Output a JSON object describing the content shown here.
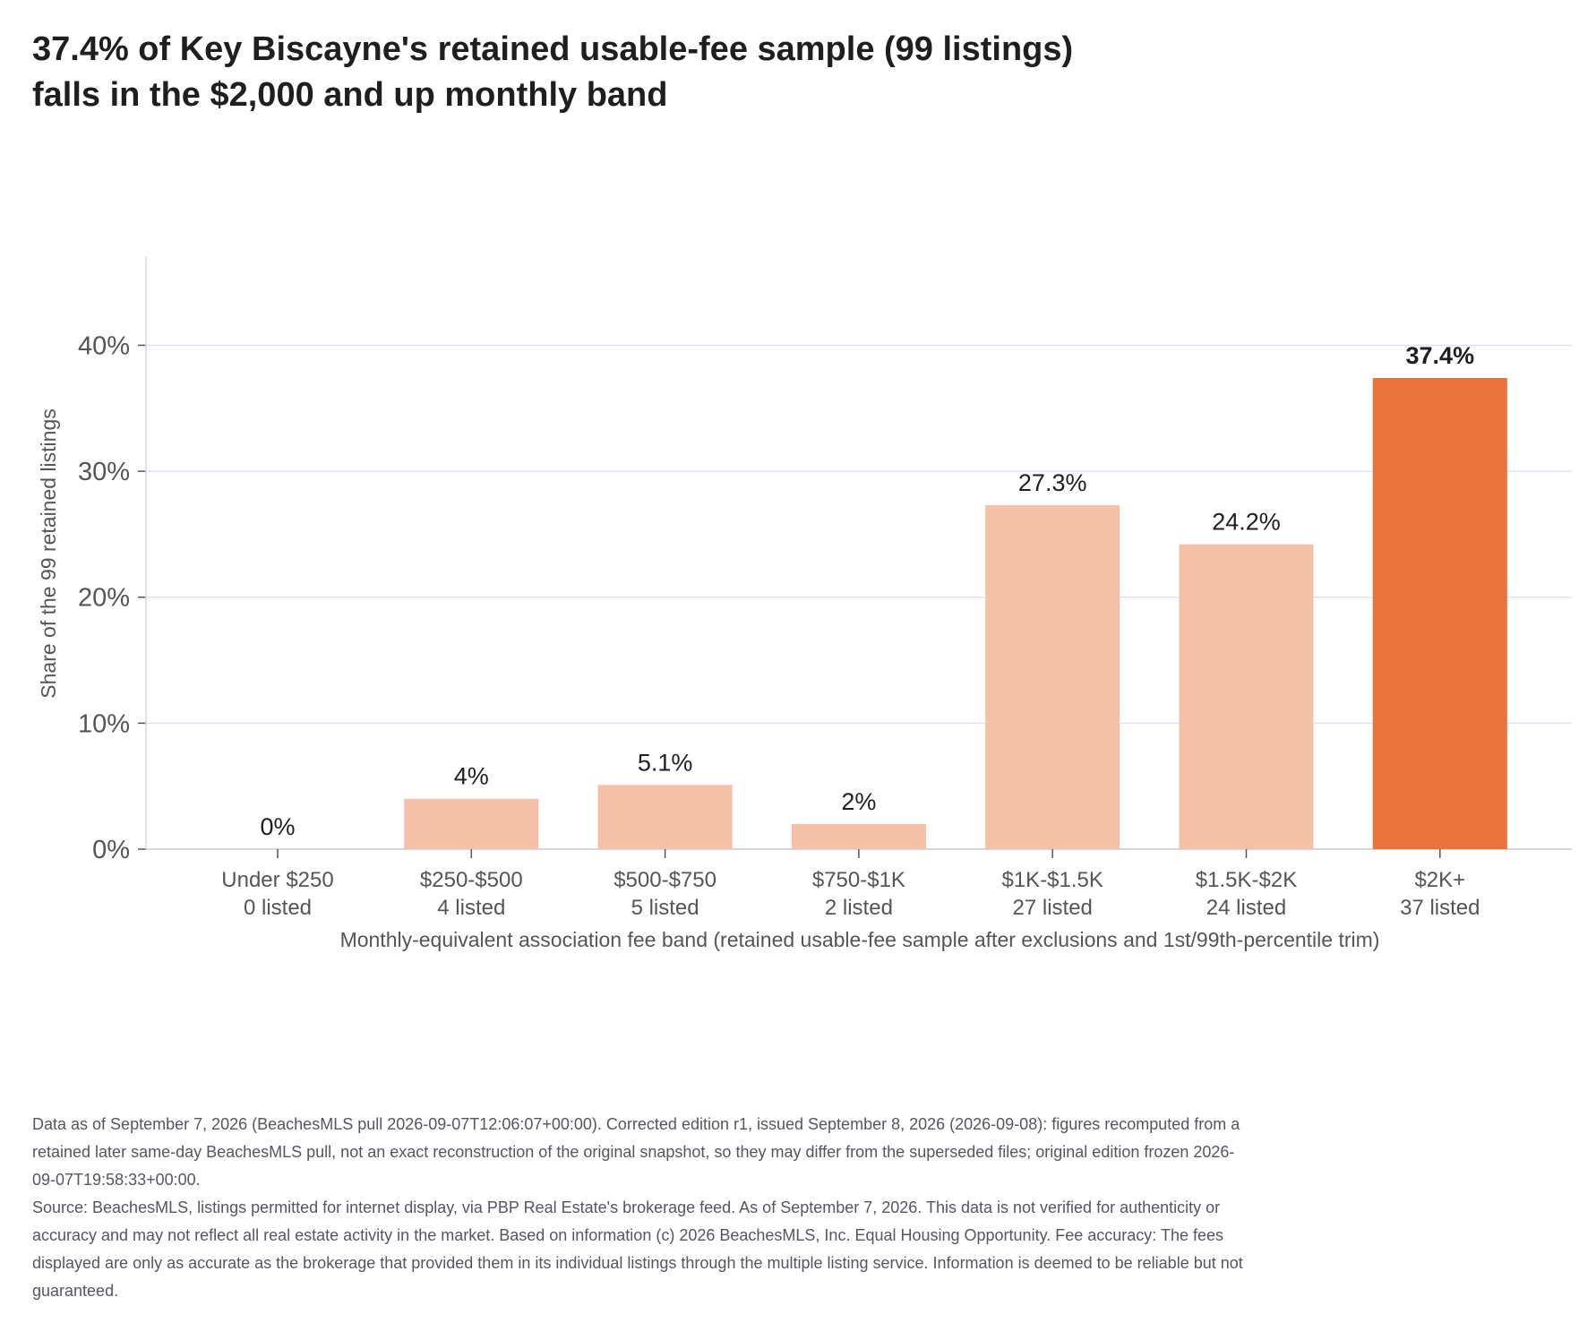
{
  "title_lines": [
    "37.4% of Key Biscayne's retained usable-fee sample (99 listings)",
    "falls in the $2,000 and up monthly band"
  ],
  "colors": {
    "bar_muted": "#f5c0a8",
    "bar_highlight": "#e8743b",
    "grid": "#e2e2ee",
    "axis": "#d6d6e0",
    "tick_text": "#555555",
    "label_text": "#1f1f1f"
  },
  "chart_data": {
    "type": "bar",
    "title": "37.4% of Key Biscayne's retained usable-fee sample (99 listings) falls in the $2,000 and up monthly band",
    "categories": [
      "Under $250",
      "$250-$500",
      "$500-$750",
      "$750-$1K",
      "$1K-$1.5K",
      "$1.5K-$2K",
      "$2K+"
    ],
    "category_sublabels": [
      "0 listed",
      "4 listed",
      "5 listed",
      "2 listed",
      "27 listed",
      "24 listed",
      "37 listed"
    ],
    "values": [
      0,
      4.0,
      5.1,
      2.0,
      27.3,
      24.2,
      37.4
    ],
    "value_labels": [
      "0%",
      "4%",
      "5.1%",
      "2%",
      "27.3%",
      "24.2%",
      "37.4%"
    ],
    "counts": [
      0,
      4,
      5,
      2,
      27,
      24,
      37
    ],
    "highlight_index": 6,
    "xlabel": "Monthly-equivalent association fee band (retained usable-fee sample after exclusions and 1st/99th-percentile trim)",
    "ylabel": "Share of the 99 retained listings",
    "ylim": [
      0,
      47
    ],
    "yticks": [
      0,
      10,
      20,
      30,
      40
    ],
    "ytick_labels": [
      "0%",
      "10%",
      "20%",
      "30%",
      "40%"
    ],
    "grid": "horizontal"
  },
  "footnote": {
    "edition_note": "Data as of September 7, 2026 (BeachesMLS pull 2026-09-07T12:06:07+00:00). Corrected edition r1, issued September 8, 2026 (2026-09-08): figures recomputed from a retained later same-day BeachesMLS pull, not an exact reconstruction of the original snapshot, so they may differ from the superseded files; original edition frozen 2026-09-07T19:58:33+00:00.",
    "source_note": "Source: BeachesMLS, listings permitted for internet display, via PBP Real Estate's brokerage feed. As of September 7, 2026. This data is not verified for authenticity or accuracy and may not reflect all real estate activity in the market. Based on information (c) 2026 BeachesMLS, Inc. Equal Housing Opportunity. Fee accuracy: The fees displayed are only as accurate as the brokerage that provided them in its individual listings through the multiple listing service. Information is deemed to be reliable but not guaranteed."
  }
}
